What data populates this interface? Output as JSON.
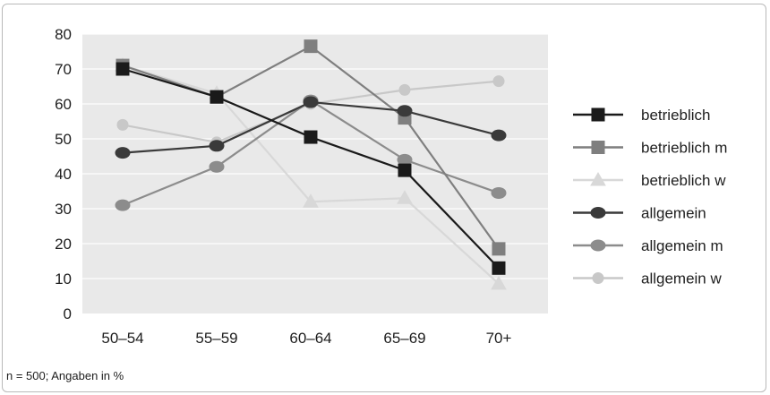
{
  "chart_data": {
    "type": "line",
    "categories": [
      "50–54",
      "55–59",
      "60–64",
      "65–69",
      "70+"
    ],
    "ylim": [
      0,
      80
    ],
    "yticks": [
      0,
      10,
      20,
      30,
      40,
      50,
      60,
      70,
      80
    ],
    "grid": true,
    "legend_position": "right",
    "series": [
      {
        "name": "betrieblich",
        "values": [
          70,
          62,
          50.5,
          41,
          13
        ],
        "color": "#1a1a1a",
        "marker": "square"
      },
      {
        "name": "betrieblich m",
        "values": [
          71,
          62,
          76.5,
          56,
          18.5
        ],
        "color": "#7f7f7f",
        "marker": "square"
      },
      {
        "name": "betrieblich w",
        "values": [
          71,
          63,
          32,
          33,
          8.5
        ],
        "color": "#d8d8d8",
        "marker": "triangle"
      },
      {
        "name": "allgemein",
        "values": [
          46,
          48,
          60.5,
          58,
          51
        ],
        "color": "#3a3a3a",
        "marker": "ellipse"
      },
      {
        "name": "allgemein m",
        "values": [
          31,
          42,
          61,
          44,
          34.5
        ],
        "color": "#8c8c8c",
        "marker": "ellipse"
      },
      {
        "name": "allgemein w",
        "values": [
          54,
          49,
          60,
          64,
          66.5
        ],
        "color": "#c8c8c8",
        "marker": "circle"
      }
    ]
  },
  "footnote": "n = 500; Angaben in %"
}
